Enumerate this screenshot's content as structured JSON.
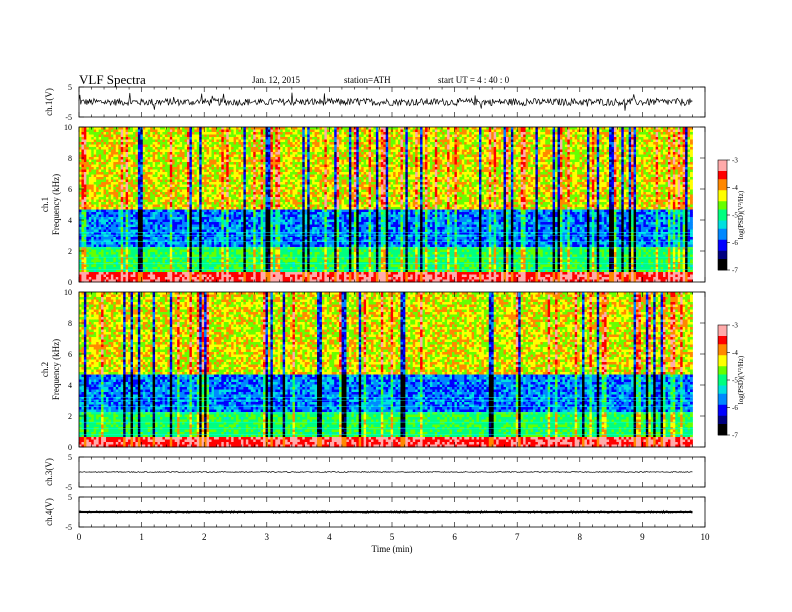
{
  "header": {
    "title": "VLF  Spectra",
    "date": "Jan. 12, 2015",
    "station": "station=ATH",
    "start": "start  UT  =  4 : 40 : 0"
  },
  "chart_data": [
    {
      "type": "line",
      "panel": "ch1-waveform",
      "ylabel": "ch.1(V)",
      "ylim": [
        -5,
        5
      ],
      "yticks": [
        -5,
        5
      ],
      "xlim": [
        0,
        10
      ],
      "data_extent_min": [
        0,
        9.8
      ],
      "waveform_center": 0,
      "waveform_amplitude": 1.2,
      "spike_amplitude": 3.5
    },
    {
      "type": "heatmap",
      "panel": "ch1-spectrogram",
      "ylabel": [
        "ch.1",
        "Frequency  (kHz)"
      ],
      "ylim": [
        0,
        10
      ],
      "yticks": [
        0,
        2,
        4,
        6,
        8,
        10
      ],
      "xlim": [
        0,
        10
      ],
      "data_extent_min": [
        0,
        9.8
      ],
      "colorbar": {
        "label": "log(PSD)(V²/Hz)",
        "range": [
          -7,
          -3
        ],
        "ticks": [
          -3,
          -4,
          -5,
          -6,
          -7
        ]
      }
    },
    {
      "type": "heatmap",
      "panel": "ch2-spectrogram",
      "ylabel": [
        "ch.2",
        "Frequency  (kHz)"
      ],
      "ylim": [
        0,
        10
      ],
      "yticks": [
        0,
        2,
        4,
        6,
        8,
        10
      ],
      "xlim": [
        0,
        10
      ],
      "data_extent_min": [
        0,
        9.8
      ],
      "colorbar": {
        "label": "log(PSD)(V²/Hz)",
        "range": [
          -7,
          -3
        ],
        "ticks": [
          -3,
          -4,
          -5,
          -6,
          -7
        ]
      }
    },
    {
      "type": "line",
      "panel": "ch3-waveform",
      "ylabel": "ch.3(V)",
      "ylim": [
        -5,
        5
      ],
      "yticks": [
        -5,
        5
      ],
      "xlim": [
        0,
        10
      ],
      "data_extent_min": [
        0,
        9.8
      ],
      "waveform_center": 0,
      "waveform_amplitude": 0.15
    },
    {
      "type": "line",
      "panel": "ch4-waveform",
      "ylabel": "ch.4(V)",
      "ylim": [
        -5,
        5
      ],
      "yticks": [
        -5,
        5
      ],
      "xlim": [
        0,
        10
      ],
      "data_extent_min": [
        0,
        9.8
      ],
      "waveform_center": 0,
      "waveform_amplitude": 0.35,
      "xlabel": "Time  (min)",
      "xticks": [
        0,
        1,
        2,
        3,
        4,
        5,
        6,
        7,
        8,
        9,
        10
      ]
    }
  ],
  "colors": {
    "colormap": [
      "#000000",
      "#00007f",
      "#0000ff",
      "#0088ff",
      "#00e0e0",
      "#00ff7f",
      "#66ff00",
      "#ffff00",
      "#ff8800",
      "#ff0000",
      "#ffaaaa"
    ]
  }
}
